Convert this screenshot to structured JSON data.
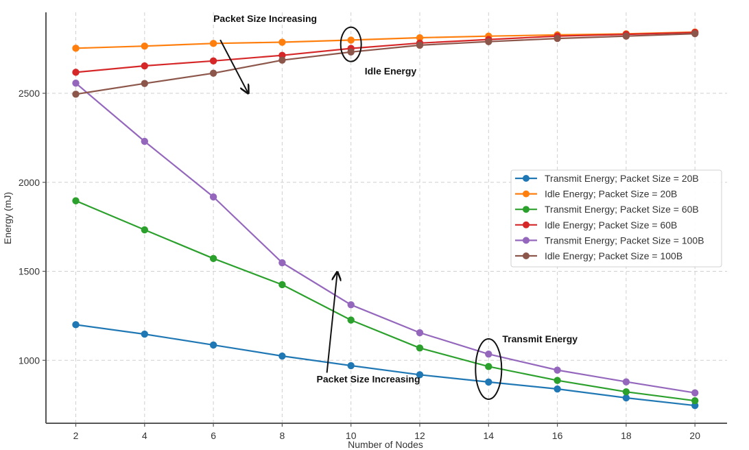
{
  "chart_data": {
    "type": "line",
    "title": "",
    "xlabel": "Number of Nodes",
    "ylabel": "Energy (mJ)",
    "x": [
      2,
      4,
      6,
      8,
      10,
      12,
      14,
      16,
      18,
      20
    ],
    "xticks": [
      "2",
      "4",
      "6",
      "8",
      "10",
      "12",
      "14",
      "16",
      "18",
      "20"
    ],
    "yticks": [
      "1000",
      "1500",
      "2000",
      "2500"
    ],
    "ytick_values": [
      1000,
      1500,
      2000,
      2500
    ],
    "xlim": [
      1.1,
      20.9
    ],
    "ylim": [
      650,
      2955
    ],
    "grid": true,
    "legend_position": "center-right",
    "series": [
      {
        "name": "Transmit Energy; Packet Size = 20B",
        "color": "#1f77b4",
        "values": [
          1200,
          1147,
          1086,
          1024,
          970,
          919,
          878,
          839,
          789,
          746
        ]
      },
      {
        "name": "Idle Energy; Packet Size = 20B",
        "color": "#ff7f0e",
        "values": [
          2753,
          2765,
          2780,
          2787,
          2799,
          2812,
          2821,
          2828,
          2834,
          2844
        ]
      },
      {
        "name": "Transmit Energy; Packet Size = 60B",
        "color": "#2ca02c",
        "values": [
          1896,
          1733,
          1572,
          1425,
          1226,
          1069,
          965,
          887,
          823,
          773
        ]
      },
      {
        "name": "Idle Energy; Packet Size = 60B",
        "color": "#d62728",
        "values": [
          2618,
          2654,
          2682,
          2713,
          2752,
          2782,
          2802,
          2821,
          2831,
          2842
        ]
      },
      {
        "name": "Transmit Energy; Packet Size = 100B",
        "color": "#9467bd",
        "values": [
          2557,
          2230,
          1918,
          1548,
          1312,
          1155,
          1035,
          945,
          879,
          817
        ]
      },
      {
        "name": "Idle Energy; Packet Size = 100B",
        "color": "#8c564b",
        "values": [
          2495,
          2555,
          2613,
          2686,
          2732,
          2770,
          2790,
          2808,
          2821,
          2835
        ]
      }
    ],
    "annotations": [
      {
        "text": "Packet Size Increasing",
        "kind": "arrow-label",
        "x": 6,
        "y": 2920,
        "arrow_from": [
          6.2,
          2800
        ],
        "arrow_to": [
          7,
          2505
        ]
      },
      {
        "text": "Idle Energy",
        "kind": "ellipse-label",
        "x": 10.4,
        "y": 2625,
        "ellipse_center": [
          10,
          2775
        ]
      },
      {
        "text": "Packet Size Increasing",
        "kind": "arrow-label",
        "x": 9.0,
        "y": 895,
        "arrow_from": [
          9.3,
          930
        ],
        "arrow_to": [
          9.6,
          1490
        ]
      },
      {
        "text": "Transmit Energy",
        "kind": "ellipse-label",
        "x": 14.4,
        "y": 1120,
        "ellipse_center": [
          14,
          951
        ]
      }
    ]
  }
}
